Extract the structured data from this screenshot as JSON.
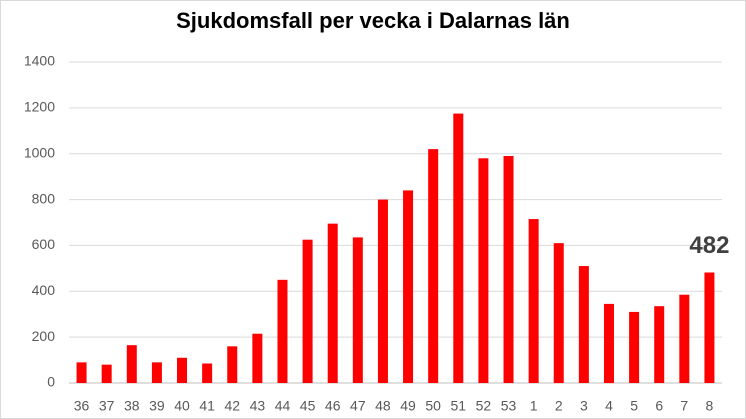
{
  "chart_data": {
    "type": "bar",
    "title": "Sjukdomsfall per vecka i Dalarnas län",
    "categories": [
      "36",
      "37",
      "38",
      "39",
      "40",
      "41",
      "42",
      "43",
      "44",
      "45",
      "46",
      "47",
      "48",
      "49",
      "50",
      "51",
      "52",
      "53",
      "1",
      "2",
      "3",
      "4",
      "5",
      "6",
      "7",
      "8"
    ],
    "values": [
      90,
      80,
      165,
      90,
      110,
      85,
      160,
      215,
      450,
      625,
      695,
      635,
      800,
      840,
      1020,
      1175,
      980,
      990,
      715,
      610,
      510,
      345,
      310,
      335,
      385,
      482
    ],
    "color": "#ff0000",
    "ylim": [
      0,
      1400
    ],
    "yticks": [
      0,
      200,
      400,
      600,
      800,
      1000,
      1200,
      1400
    ],
    "grid": true,
    "labeled_index": 25
  }
}
